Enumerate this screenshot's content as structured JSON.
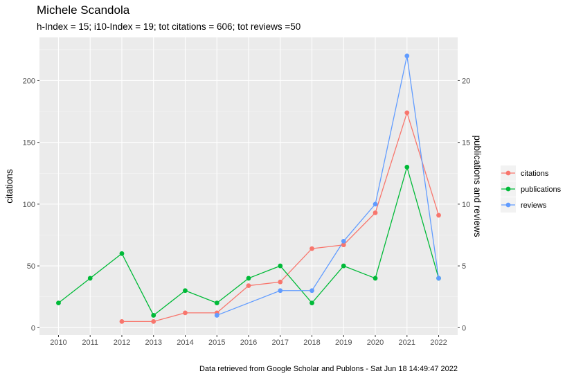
{
  "chart_data": {
    "type": "line",
    "title": "Michele Scandola",
    "subtitle": "h-Index = 15; i10-Index = 19; tot citations = 606; tot reviews =50",
    "caption": "Data retrieved from Google Scholar and Publons - Sat Jun 18 14:49:47 2022",
    "xlabel": "",
    "ylabel": "citations",
    "y2label": "publications and reviews",
    "x": [
      2010,
      2011,
      2012,
      2013,
      2014,
      2015,
      2016,
      2017,
      2018,
      2019,
      2020,
      2021,
      2022
    ],
    "x_ticks": [
      "2010",
      "2011",
      "2012",
      "2013",
      "2014",
      "2015",
      "2016",
      "2017",
      "2018",
      "2019",
      "2020",
      "2021",
      "2022"
    ],
    "ylim": [
      -6,
      235
    ],
    "y_ticks": [
      "0",
      "50",
      "100",
      "150",
      "200"
    ],
    "y2_ticks": [
      "0",
      "5",
      "10",
      "15",
      "20"
    ],
    "secondary_axis_scale": 10,
    "grid": true,
    "legend_position": "right",
    "series": [
      {
        "name": "citations",
        "color": "#F8766D",
        "axis": "left",
        "points": [
          {
            "x": 2012,
            "y": 5
          },
          {
            "x": 2013,
            "y": 5
          },
          {
            "x": 2014,
            "y": 12
          },
          {
            "x": 2015,
            "y": 12
          },
          {
            "x": 2016,
            "y": 34
          },
          {
            "x": 2017,
            "y": 37
          },
          {
            "x": 2018,
            "y": 64
          },
          {
            "x": 2019,
            "y": 67
          },
          {
            "x": 2020,
            "y": 93
          },
          {
            "x": 2021,
            "y": 174
          },
          {
            "x": 2022,
            "y": 91
          }
        ]
      },
      {
        "name": "publications",
        "color": "#00BA38",
        "axis": "right",
        "points": [
          {
            "x": 2010,
            "y": 2
          },
          {
            "x": 2011,
            "y": 4
          },
          {
            "x": 2012,
            "y": 6
          },
          {
            "x": 2013,
            "y": 1
          },
          {
            "x": 2014,
            "y": 3
          },
          {
            "x": 2015,
            "y": 2
          },
          {
            "x": 2016,
            "y": 4
          },
          {
            "x": 2017,
            "y": 5
          },
          {
            "x": 2018,
            "y": 2
          },
          {
            "x": 2019,
            "y": 5
          },
          {
            "x": 2020,
            "y": 4
          },
          {
            "x": 2021,
            "y": 13
          },
          {
            "x": 2022,
            "y": 4
          }
        ]
      },
      {
        "name": "reviews",
        "color": "#619CFF",
        "axis": "right",
        "points": [
          {
            "x": 2015,
            "y": 1
          },
          {
            "x": 2017,
            "y": 3
          },
          {
            "x": 2018,
            "y": 3
          },
          {
            "x": 2019,
            "y": 7
          },
          {
            "x": 2020,
            "y": 10
          },
          {
            "x": 2021,
            "y": 22
          },
          {
            "x": 2022,
            "y": 4
          }
        ]
      }
    ]
  }
}
